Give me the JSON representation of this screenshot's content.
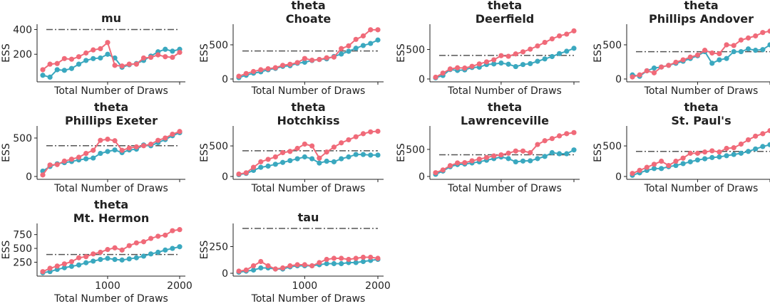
{
  "chart_data": [
    {
      "type": "line",
      "title_lines": [
        "mu"
      ],
      "ylabel": "ESS",
      "xlabel": "Total Number of Draws",
      "xlim": [
        100,
        2000
      ],
      "ylim": [
        0,
        420
      ],
      "yticks": [
        200,
        400
      ],
      "xticks": [],
      "reference": 400,
      "x": [
        100,
        200,
        300,
        400,
        500,
        600,
        700,
        800,
        900,
        1000,
        1100,
        1200,
        1300,
        1400,
        1500,
        1600,
        1700,
        1800,
        1900,
        2000
      ],
      "series": [
        {
          "color": "#f06a79",
          "values": [
            75,
            120,
            125,
            165,
            160,
            180,
            210,
            235,
            245,
            295,
            110,
            105,
            120,
            120,
            170,
            175,
            195,
            180,
            175,
            215
          ]
        },
        {
          "color": "#3aa8bf",
          "values": [
            30,
            15,
            75,
            70,
            85,
            120,
            150,
            165,
            170,
            200,
            170,
            95,
            115,
            125,
            150,
            185,
            220,
            240,
            225,
            240
          ]
        }
      ]
    },
    {
      "type": "line",
      "title_lines": [
        "theta",
        "Choate"
      ],
      "ylabel": "ESS",
      "xlabel": "Total Number of Draws",
      "xlim": [
        100,
        2000
      ],
      "ylim": [
        0,
        760
      ],
      "yticks": [
        0,
        500
      ],
      "xticks": [],
      "reference": 410,
      "x": [
        100,
        200,
        300,
        400,
        500,
        600,
        700,
        800,
        900,
        1000,
        1100,
        1200,
        1300,
        1400,
        1500,
        1600,
        1700,
        1800,
        1900,
        2000
      ],
      "series": [
        {
          "color": "#f06a79",
          "values": [
            40,
            80,
            110,
            135,
            150,
            165,
            200,
            215,
            240,
            300,
            275,
            285,
            310,
            320,
            445,
            485,
            580,
            630,
            720,
            720
          ]
        },
        {
          "color": "#3aa8bf",
          "values": [
            20,
            55,
            85,
            105,
            135,
            155,
            185,
            195,
            230,
            245,
            270,
            285,
            295,
            330,
            365,
            405,
            450,
            490,
            520,
            570
          ]
        }
      ]
    },
    {
      "type": "line",
      "title_lines": [
        "theta",
        "Deerfield"
      ],
      "ylabel": "ESS",
      "xlabel": "Total Number of Draws",
      "xlim": [
        100,
        2000
      ],
      "ylim": [
        0,
        880
      ],
      "yticks": [
        0,
        500
      ],
      "xticks": [],
      "reference": 400,
      "x": [
        100,
        200,
        300,
        400,
        500,
        600,
        700,
        800,
        900,
        1000,
        1100,
        1200,
        1300,
        1400,
        1500,
        1600,
        1700,
        1800,
        1900,
        2000
      ],
      "series": [
        {
          "color": "#f06a79",
          "values": [
            30,
            100,
            170,
            190,
            185,
            215,
            255,
            290,
            325,
            395,
            385,
            425,
            460,
            505,
            560,
            620,
            680,
            730,
            760,
            815
          ]
        },
        {
          "color": "#3aa8bf",
          "values": [
            20,
            60,
            160,
            145,
            155,
            195,
            200,
            245,
            255,
            270,
            250,
            210,
            245,
            260,
            300,
            340,
            380,
            430,
            470,
            520
          ]
        }
      ]
    },
    {
      "type": "line",
      "title_lines": [
        "theta",
        "Phillips Andover"
      ],
      "ylabel": "ESS",
      "xlabel": "Total Number of Draws",
      "xlim": [
        100,
        2000
      ],
      "ylim": [
        0,
        760
      ],
      "yticks": [
        0,
        500
      ],
      "xticks": [],
      "reference": 400,
      "x": [
        100,
        200,
        300,
        400,
        500,
        600,
        700,
        800,
        900,
        1000,
        1100,
        1200,
        1300,
        1400,
        1500,
        1600,
        1700,
        1800,
        1900,
        2000
      ],
      "series": [
        {
          "color": "#f06a79",
          "values": [
            30,
            60,
            120,
            90,
            175,
            200,
            245,
            280,
            320,
            350,
            420,
            380,
            370,
            500,
            490,
            570,
            600,
            630,
            680,
            700
          ]
        },
        {
          "color": "#3aa8bf",
          "values": [
            60,
            40,
            120,
            160,
            175,
            200,
            230,
            260,
            300,
            340,
            400,
            230,
            280,
            300,
            400,
            400,
            440,
            420,
            430,
            500
          ]
        }
      ]
    },
    {
      "type": "line",
      "title_lines": [
        "theta",
        "Phillips Exeter"
      ],
      "ylabel": "ESS",
      "xlabel": "Total Number of Draws",
      "xlim": [
        100,
        2000
      ],
      "ylim": [
        0,
        620
      ],
      "yticks": [
        0,
        500
      ],
      "xticks": [],
      "reference": 400,
      "x": [
        100,
        200,
        300,
        400,
        500,
        600,
        700,
        800,
        900,
        1000,
        1100,
        1200,
        1300,
        1400,
        1500,
        1600,
        1700,
        1800,
        1900,
        2000
      ],
      "series": [
        {
          "color": "#f06a79",
          "values": [
            20,
            150,
            155,
            200,
            225,
            250,
            300,
            340,
            470,
            485,
            465,
            340,
            370,
            385,
            400,
            420,
            470,
            500,
            550,
            585
          ]
        },
        {
          "color": "#3aa8bf",
          "values": [
            70,
            130,
            165,
            180,
            195,
            215,
            230,
            240,
            300,
            325,
            345,
            310,
            345,
            355,
            410,
            400,
            440,
            480,
            530,
            570
          ]
        }
      ]
    },
    {
      "type": "line",
      "title_lines": [
        "theta",
        "Hotchkiss"
      ],
      "ylabel": "ESS",
      "xlabel": "Total Number of Draws",
      "xlim": [
        100,
        2000
      ],
      "ylim": [
        0,
        780
      ],
      "yticks": [
        0,
        500
      ],
      "xticks": [],
      "reference": 420,
      "x": [
        100,
        200,
        300,
        400,
        500,
        600,
        700,
        800,
        900,
        1000,
        1100,
        1200,
        1300,
        1400,
        1500,
        1600,
        1700,
        1800,
        1900,
        2000
      ],
      "series": [
        {
          "color": "#f06a79",
          "values": [
            40,
            60,
            150,
            240,
            280,
            320,
            390,
            410,
            460,
            530,
            500,
            300,
            400,
            480,
            550,
            600,
            650,
            700,
            730,
            740
          ]
        },
        {
          "color": "#3aa8bf",
          "values": [
            30,
            50,
            100,
            150,
            170,
            200,
            230,
            260,
            290,
            320,
            290,
            220,
            250,
            240,
            290,
            320,
            360,
            360,
            350,
            350
          ]
        }
      ]
    },
    {
      "type": "line",
      "title_lines": [
        "theta",
        "Lawrenceville"
      ],
      "ylabel": "ESS",
      "xlabel": "Total Number of Draws",
      "xlim": [
        100,
        2000
      ],
      "ylim": [
        0,
        880
      ],
      "yticks": [
        0,
        500
      ],
      "xticks": [],
      "reference": 400,
      "x": [
        100,
        200,
        300,
        400,
        500,
        600,
        700,
        800,
        900,
        1000,
        1100,
        1200,
        1300,
        1400,
        1500,
        1600,
        1700,
        1800,
        1900,
        2000
      ],
      "series": [
        {
          "color": "#f06a79",
          "values": [
            70,
            120,
            200,
            250,
            255,
            290,
            320,
            350,
            380,
            400,
            430,
            470,
            470,
            440,
            590,
            660,
            700,
            750,
            790,
            810
          ]
        },
        {
          "color": "#3aa8bf",
          "values": [
            40,
            100,
            180,
            220,
            230,
            250,
            270,
            300,
            330,
            360,
            330,
            270,
            285,
            290,
            330,
            370,
            440,
            420,
            420,
            490
          ]
        }
      ]
    },
    {
      "type": "line",
      "title_lines": [
        "theta",
        "St. Paul's"
      ],
      "ylabel": "ESS",
      "xlabel": "Total Number of Draws",
      "xlim": [
        100,
        2000
      ],
      "ylim": [
        0,
        780
      ],
      "yticks": [
        0,
        500
      ],
      "xticks": [],
      "reference": 410,
      "x": [
        100,
        200,
        300,
        400,
        500,
        600,
        700,
        800,
        900,
        1000,
        1100,
        1200,
        1300,
        1400,
        1500,
        1600,
        1700,
        1800,
        1900,
        2000
      ],
      "series": [
        {
          "color": "#f06a79",
          "values": [
            50,
            100,
            150,
            200,
            250,
            180,
            250,
            300,
            380,
            380,
            400,
            420,
            400,
            460,
            470,
            530,
            600,
            660,
            700,
            750
          ]
        },
        {
          "color": "#3aa8bf",
          "values": [
            20,
            60,
            100,
            130,
            130,
            160,
            180,
            210,
            240,
            270,
            290,
            310,
            320,
            340,
            360,
            380,
            410,
            450,
            490,
            520
          ]
        }
      ]
    },
    {
      "type": "line",
      "title_lines": [
        "theta",
        "Mt. Hermon"
      ],
      "ylabel": "ESS",
      "xlabel": "Total Number of Draws",
      "xlim": [
        100,
        2000
      ],
      "ylim": [
        50,
        900
      ],
      "yticks": [
        250,
        500,
        750
      ],
      "xticks": [
        1000,
        2000
      ],
      "reference": 390,
      "x": [
        100,
        200,
        300,
        400,
        500,
        600,
        700,
        800,
        900,
        1000,
        1100,
        1200,
        1300,
        1400,
        1500,
        1600,
        1700,
        1800,
        1900,
        2000
      ],
      "series": [
        {
          "color": "#f06a79",
          "values": [
            80,
            140,
            180,
            220,
            260,
            330,
            350,
            400,
            430,
            480,
            510,
            470,
            550,
            600,
            620,
            680,
            720,
            740,
            820,
            840
          ]
        },
        {
          "color": "#3aa8bf",
          "values": [
            60,
            80,
            120,
            150,
            175,
            200,
            240,
            270,
            300,
            320,
            300,
            290,
            310,
            330,
            360,
            400,
            430,
            470,
            500,
            530
          ]
        }
      ]
    },
    {
      "type": "line",
      "title_lines": [
        "tau"
      ],
      "ylabel": "ESS",
      "xlabel": "Total Number of Draws",
      "xlim": [
        100,
        2000
      ],
      "ylim": [
        0,
        440
      ],
      "yticks": [
        0,
        250
      ],
      "xticks": [
        1000,
        2000
      ],
      "reference": 420,
      "x": [
        100,
        200,
        300,
        400,
        500,
        600,
        700,
        800,
        900,
        1000,
        1100,
        1200,
        1300,
        1400,
        1500,
        1600,
        1700,
        1800,
        1900,
        2000
      ],
      "series": [
        {
          "color": "#f06a79",
          "values": [
            20,
            30,
            70,
            110,
            70,
            40,
            50,
            70,
            80,
            80,
            70,
            100,
            130,
            140,
            140,
            130,
            140,
            150,
            150,
            140
          ]
        },
        {
          "color": "#3aa8bf",
          "values": [
            10,
            20,
            30,
            50,
            50,
            40,
            40,
            60,
            70,
            70,
            70,
            80,
            90,
            90,
            90,
            100,
            100,
            110,
            120,
            130
          ]
        }
      ]
    }
  ]
}
